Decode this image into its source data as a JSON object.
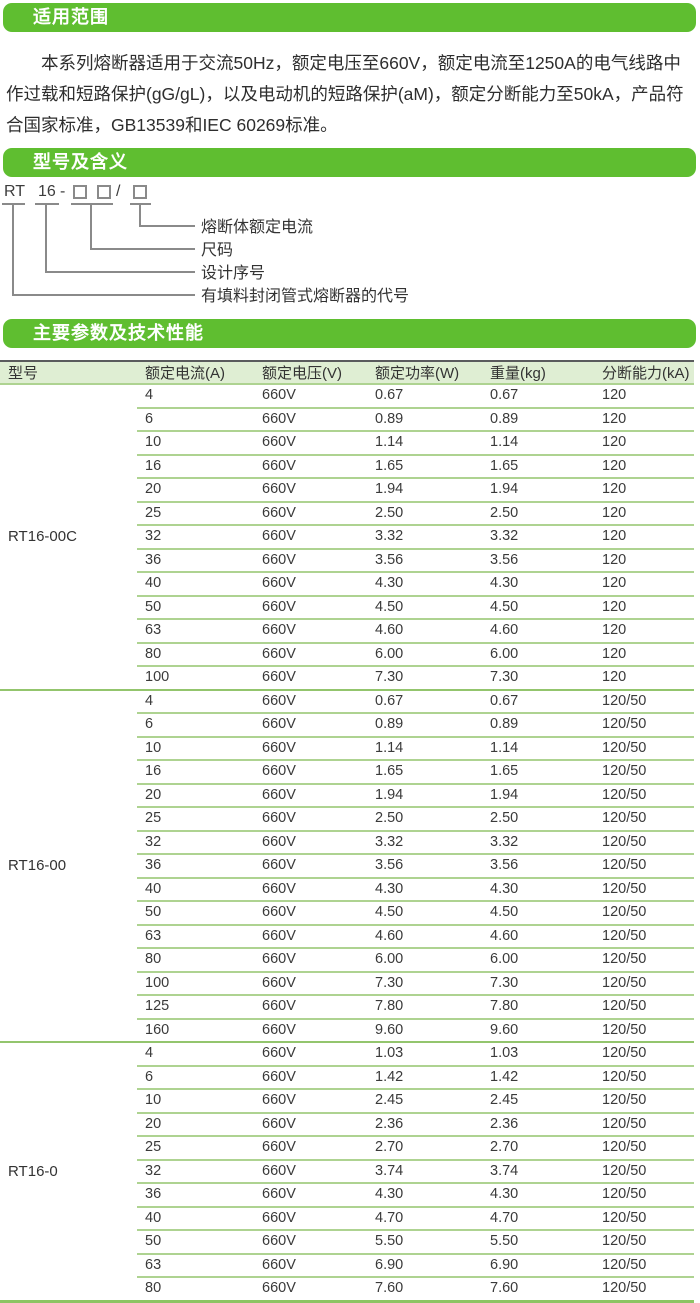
{
  "colors": {
    "banner_green": "#5fbe30",
    "table_header_bg": "#dfeed3",
    "row_line_green": "#aed391",
    "section_line_green": "#93c56d",
    "table_bottom_green": "#8cc463",
    "table_top_border": "#5a5b5d"
  },
  "scope": {
    "title": "适用范围",
    "paragraph": "本系列熔断器适用于交流50Hz，额定电压至660V，额定电流至1250A的电气线路中作过载和短路保护(gG/gL)，以及电动机的短路保护(aM)，额定分断能力至50kA，产品符合国家标准，GB13539和IEC 60269标准。"
  },
  "model": {
    "title": "型号及含义",
    "code": {
      "prefix": "RT",
      "series": "16",
      "dash": "-",
      "slash": "/"
    },
    "labels": [
      "熔断体额定电流",
      "尺码",
      "设计序号",
      "有填料封闭管式熔断器的代号"
    ]
  },
  "params": {
    "title": "主要参数及技术性能",
    "table": {
      "headers": [
        "型号",
        "额定电流(A)",
        "额定电压(V)",
        "额定功率(W)",
        "重量(kg)",
        "分断能力(kA)"
      ],
      "sections": [
        {
          "model": "RT16-00C",
          "rows": [
            [
              "4",
              "660V",
              "0.67",
              "0.67",
              "120"
            ],
            [
              "6",
              "660V",
              "0.89",
              "0.89",
              "120"
            ],
            [
              "10",
              "660V",
              "1.14",
              "1.14",
              "120"
            ],
            [
              "16",
              "660V",
              "1.65",
              "1.65",
              "120"
            ],
            [
              "20",
              "660V",
              "1.94",
              "1.94",
              "120"
            ],
            [
              "25",
              "660V",
              "2.50",
              "2.50",
              "120"
            ],
            [
              "32",
              "660V",
              "3.32",
              "3.32",
              "120"
            ],
            [
              "36",
              "660V",
              "3.56",
              "3.56",
              "120"
            ],
            [
              "40",
              "660V",
              "4.30",
              "4.30",
              "120"
            ],
            [
              "50",
              "660V",
              "4.50",
              "4.50",
              "120"
            ],
            [
              "63",
              "660V",
              "4.60",
              "4.60",
              "120"
            ],
            [
              "80",
              "660V",
              "6.00",
              "6.00",
              "120"
            ],
            [
              "100",
              "660V",
              "7.30",
              "7.30",
              "120"
            ]
          ]
        },
        {
          "model": "RT16-00",
          "rows": [
            [
              "4",
              "660V",
              "0.67",
              "0.67",
              "120/50"
            ],
            [
              "6",
              "660V",
              "0.89",
              "0.89",
              "120/50"
            ],
            [
              "10",
              "660V",
              "1.14",
              "1.14",
              "120/50"
            ],
            [
              "16",
              "660V",
              "1.65",
              "1.65",
              "120/50"
            ],
            [
              "20",
              "660V",
              "1.94",
              "1.94",
              "120/50"
            ],
            [
              "25",
              "660V",
              "2.50",
              "2.50",
              "120/50"
            ],
            [
              "32",
              "660V",
              "3.32",
              "3.32",
              "120/50"
            ],
            [
              "36",
              "660V",
              "3.56",
              "3.56",
              "120/50"
            ],
            [
              "40",
              "660V",
              "4.30",
              "4.30",
              "120/50"
            ],
            [
              "50",
              "660V",
              "4.50",
              "4.50",
              "120/50"
            ],
            [
              "63",
              "660V",
              "4.60",
              "4.60",
              "120/50"
            ],
            [
              "80",
              "660V",
              "6.00",
              "6.00",
              "120/50"
            ],
            [
              "100",
              "660V",
              "7.30",
              "7.30",
              "120/50"
            ],
            [
              "125",
              "660V",
              "7.80",
              "7.80",
              "120/50"
            ],
            [
              "160",
              "660V",
              "9.60",
              "9.60",
              "120/50"
            ]
          ]
        },
        {
          "model": "RT16-0",
          "rows": [
            [
              "4",
              "660V",
              "1.03",
              "1.03",
              "120/50"
            ],
            [
              "6",
              "660V",
              "1.42",
              "1.42",
              "120/50"
            ],
            [
              "10",
              "660V",
              "2.45",
              "2.45",
              "120/50"
            ],
            [
              "20",
              "660V",
              "2.36",
              "2.36",
              "120/50"
            ],
            [
              "25",
              "660V",
              "2.70",
              "2.70",
              "120/50"
            ],
            [
              "32",
              "660V",
              "3.74",
              "3.74",
              "120/50"
            ],
            [
              "36",
              "660V",
              "4.30",
              "4.30",
              "120/50"
            ],
            [
              "40",
              "660V",
              "4.70",
              "4.70",
              "120/50"
            ],
            [
              "50",
              "660V",
              "5.50",
              "5.50",
              "120/50"
            ],
            [
              "63",
              "660V",
              "6.90",
              "6.90",
              "120/50"
            ],
            [
              "80",
              "660V",
              "7.60",
              "7.60",
              "120/50"
            ]
          ]
        }
      ]
    }
  }
}
